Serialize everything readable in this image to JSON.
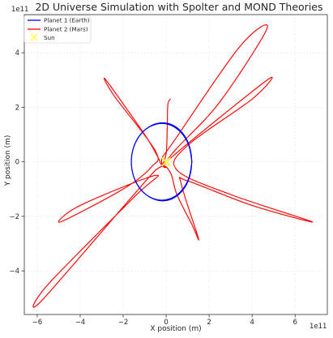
{
  "chart_data": {
    "type": "line",
    "title": "2D Universe Simulation with Spolter and MOND Theories",
    "xlabel": "X position (m)",
    "ylabel": "Y position (m)",
    "x_offset_label": "1e11",
    "y_offset_label": "1e11",
    "xlim": [
      -6.6,
      7.5
    ],
    "ylim": [
      -5.6,
      5.4
    ],
    "x_ticks": [
      -6,
      -4,
      -2,
      0,
      2,
      4,
      6
    ],
    "y_ticks": [
      -4,
      -2,
      0,
      2,
      4
    ],
    "x_tick_labels": [
      "−6",
      "−4",
      "−2",
      "0",
      "2",
      "4",
      "6"
    ],
    "y_tick_labels": [
      "−4",
      "−2",
      "0",
      "2",
      "4"
    ],
    "grid": true,
    "legend_position": "top-left",
    "series": [
      {
        "name": "Planet 1 (Earth)",
        "color": "#0000ff",
        "x": [
          1.2,
          1.06,
          0.7,
          0.16,
          -0.47,
          -1.06,
          -1.48,
          -1.62,
          -1.44,
          -0.97,
          -0.33,
          0.32,
          0.86,
          1.15,
          1.15,
          0.86,
          0.32,
          -0.33,
          -0.97,
          -1.44,
          -1.62,
          -1.48,
          -1.06,
          -0.47,
          0.16,
          0.7,
          1.06,
          1.2
        ],
        "y": [
          0.0,
          0.59,
          1.07,
          1.36,
          1.38,
          1.12,
          0.61,
          -0.04,
          -0.68,
          -1.18,
          -1.42,
          -1.34,
          -0.95,
          -0.35,
          0.35,
          0.95,
          1.34,
          1.42,
          1.18,
          0.68,
          0.04,
          -0.61,
          -1.12,
          -1.38,
          -1.36,
          -1.07,
          -0.59,
          0.0
        ]
      },
      {
        "name": "Planet 2 (Mars)",
        "color": "#ff0000",
        "x": [
          0.0,
          0.5,
          2.5,
          4.7,
          3.4,
          0.4,
          -0.2,
          0.0,
          0.3,
          4.7,
          4.0,
          1.0,
          0.5,
          3.0,
          6.8,
          4.0,
          1.0,
          0.7,
          1.5,
          1.2,
          0.5,
          0.2,
          -0.3,
          -1.5,
          -5.8,
          -5.5,
          -1.5,
          -0.5,
          -4.0,
          -4.9,
          -2.0,
          -0.7,
          -0.5,
          -2.4,
          -2.8,
          -1.0,
          -0.4,
          -0.2,
          0.0,
          0.05,
          0.08,
          0.2
        ],
        "y": [
          0.0,
          0.5,
          2.2,
          4.9,
          4.2,
          0.8,
          0.1,
          -0.2,
          0.2,
          3.0,
          2.3,
          0.6,
          -0.3,
          -1.2,
          -2.2,
          -1.6,
          -0.7,
          -0.8,
          -2.8,
          -2.3,
          -1.2,
          -0.4,
          -0.2,
          -1.2,
          -5.1,
          -4.5,
          -1.3,
          -0.5,
          -1.6,
          -2.2,
          -1.0,
          -0.2,
          0.4,
          2.4,
          3.0,
          1.0,
          0.2,
          -0.1,
          0.3,
          1.2,
          2.1,
          2.3
        ]
      }
    ],
    "sun": {
      "name": "Sun",
      "x": 0.0,
      "y": 0.0,
      "color": "#ffff33"
    }
  }
}
